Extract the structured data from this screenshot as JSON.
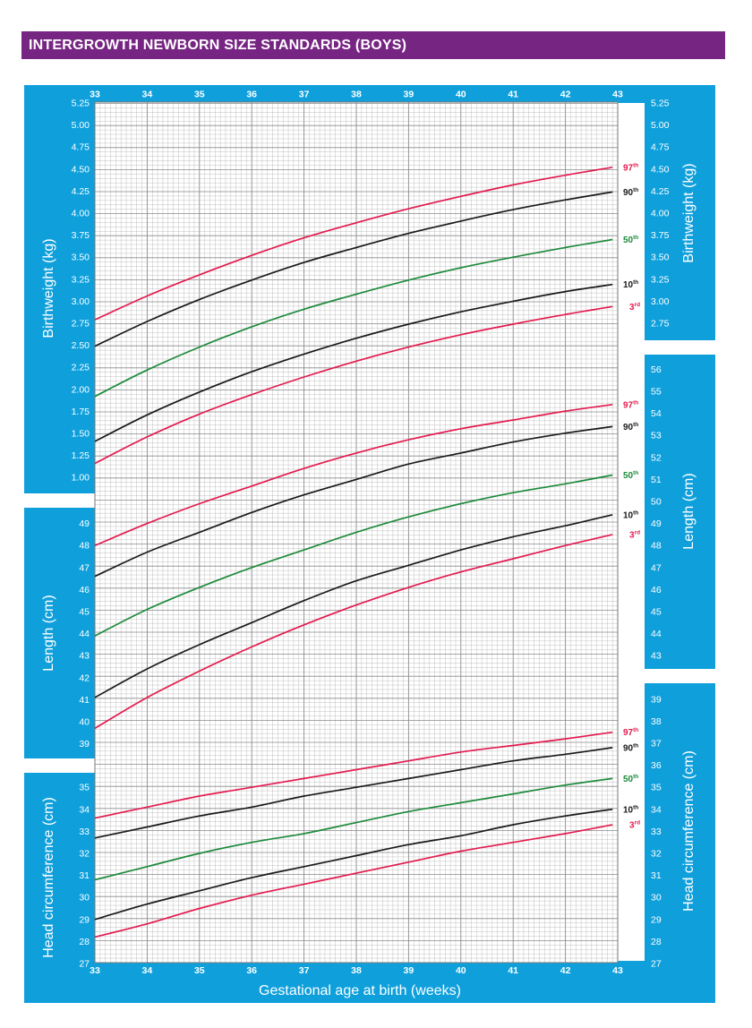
{
  "header": {
    "title": "INTERGROWTH NEWBORN SIZE STANDARDS (BOYS)"
  },
  "colors": {
    "header_bg": "#772583",
    "panel_bg": "#0fa0dc",
    "p3_97": "#e31b4f",
    "p10_90": "#1a1a1a",
    "p50": "#1e8a3c",
    "grid": "#a8a8a8"
  },
  "chart_data": {
    "type": "line",
    "xlabel": "Gestational age at birth (weeks)",
    "x_ticks": [
      "33",
      "34",
      "35",
      "36",
      "37",
      "38",
      "39",
      "40",
      "41",
      "42",
      "43"
    ],
    "xlim": [
      33,
      43
    ],
    "x": [
      33,
      34,
      35,
      36,
      37,
      38,
      39,
      40,
      41,
      42,
      42.9
    ],
    "grid": true,
    "panels": [
      {
        "name": "birthweight",
        "ylabel": "Birthweight (kg)",
        "left_ticks": [
          "5.25",
          "5.00",
          "4.75",
          "4.50",
          "4.25",
          "4.00",
          "3.75",
          "3.50",
          "3.25",
          "3.00",
          "2.75",
          "2.50",
          "2.25",
          "2.00",
          "1.75",
          "1.50",
          "1.25",
          "1.00"
        ],
        "right_ticks": [
          "5.25",
          "5.00",
          "4.75",
          "4.50",
          "4.25",
          "4.00",
          "3.75",
          "3.50",
          "3.25",
          "3.00",
          "2.75"
        ],
        "series": [
          {
            "name": "97",
            "sup": "th",
            "color": "#e31b4f",
            "values": [
              2.79,
              3.06,
              3.3,
              3.52,
              3.72,
              3.89,
              4.05,
              4.19,
              4.32,
              4.43,
              4.52
            ]
          },
          {
            "name": "90",
            "sup": "th",
            "color": "#1a1a1a",
            "values": [
              2.49,
              2.77,
              3.02,
              3.24,
              3.44,
              3.61,
              3.77,
              3.91,
              4.04,
              4.15,
              4.24
            ]
          },
          {
            "name": "50",
            "sup": "th",
            "color": "#1e8a3c",
            "values": [
              1.92,
              2.22,
              2.48,
              2.71,
              2.91,
              3.08,
              3.24,
              3.38,
              3.5,
              3.61,
              3.7
            ]
          },
          {
            "name": "10",
            "sup": "th",
            "color": "#1a1a1a",
            "values": [
              1.41,
              1.71,
              1.97,
              2.2,
              2.4,
              2.58,
              2.74,
              2.88,
              3.0,
              3.11,
              3.19
            ]
          },
          {
            "name": "3",
            "sup": "rd",
            "color": "#e31b4f",
            "values": [
              1.16,
              1.46,
              1.72,
              1.94,
              2.14,
              2.32,
              2.48,
              2.62,
              2.74,
              2.85,
              2.94
            ]
          }
        ]
      },
      {
        "name": "length",
        "ylabel": "Length (cm)",
        "left_ticks": [
          "49",
          "48",
          "47",
          "46",
          "45",
          "44",
          "43",
          "42",
          "41",
          "40",
          "39"
        ],
        "right_ticks": [
          "56",
          "55",
          "54",
          "53",
          "52",
          "51",
          "50",
          "49",
          "48",
          "47",
          "46",
          "45",
          "44",
          "43"
        ],
        "series": [
          {
            "name": "97",
            "sup": "th",
            "color": "#e31b4f",
            "values": [
              48.0,
              49.0,
              49.9,
              50.7,
              51.5,
              52.2,
              52.8,
              53.3,
              53.7,
              54.1,
              54.4
            ]
          },
          {
            "name": "90",
            "sup": "th",
            "color": "#1a1a1a",
            "values": [
              46.6,
              47.7,
              48.6,
              49.5,
              50.3,
              51.0,
              51.7,
              52.2,
              52.7,
              53.1,
              53.4
            ]
          },
          {
            "name": "50",
            "sup": "th",
            "color": "#1e8a3c",
            "values": [
              43.9,
              45.1,
              46.1,
              47.0,
              47.8,
              48.6,
              49.3,
              49.9,
              50.4,
              50.8,
              51.2
            ]
          },
          {
            "name": "10",
            "sup": "th",
            "color": "#1a1a1a",
            "values": [
              41.1,
              42.4,
              43.5,
              44.5,
              45.5,
              46.4,
              47.1,
              47.8,
              48.4,
              48.9,
              49.4
            ]
          },
          {
            "name": "3",
            "sup": "rd",
            "color": "#e31b4f",
            "values": [
              39.7,
              41.1,
              42.3,
              43.4,
              44.4,
              45.3,
              46.1,
              46.8,
              47.4,
              48.0,
              48.5
            ]
          }
        ]
      },
      {
        "name": "head_circumference",
        "ylabel": "Head circumference (cm)",
        "left_ticks": [
          "35",
          "34",
          "33",
          "32",
          "31",
          "30",
          "29",
          "28",
          "27"
        ],
        "right_ticks": [
          "39",
          "38",
          "37",
          "36",
          "35",
          "34",
          "33",
          "32",
          "31",
          "30",
          "29",
          "28",
          "27"
        ],
        "series": [
          {
            "name": "97",
            "sup": "th",
            "color": "#e31b4f",
            "values": [
              33.6,
              34.1,
              34.6,
              35.0,
              35.4,
              35.8,
              36.2,
              36.6,
              36.9,
              37.2,
              37.5
            ]
          },
          {
            "name": "90",
            "sup": "th",
            "color": "#1a1a1a",
            "values": [
              32.7,
              33.2,
              33.7,
              34.1,
              34.6,
              35.0,
              35.4,
              35.8,
              36.2,
              36.5,
              36.8
            ]
          },
          {
            "name": "50",
            "sup": "th",
            "color": "#1e8a3c",
            "values": [
              30.8,
              31.4,
              32.0,
              32.5,
              32.9,
              33.4,
              33.9,
              34.3,
              34.7,
              35.1,
              35.4
            ]
          },
          {
            "name": "10",
            "sup": "th",
            "color": "#1a1a1a",
            "values": [
              29.0,
              29.7,
              30.3,
              30.9,
              31.4,
              31.9,
              32.4,
              32.8,
              33.3,
              33.7,
              34.0
            ]
          },
          {
            "name": "3",
            "sup": "rd",
            "color": "#e31b4f",
            "values": [
              28.2,
              28.8,
              29.5,
              30.1,
              30.6,
              31.1,
              31.6,
              32.1,
              32.5,
              32.9,
              33.3
            ]
          }
        ]
      }
    ]
  }
}
